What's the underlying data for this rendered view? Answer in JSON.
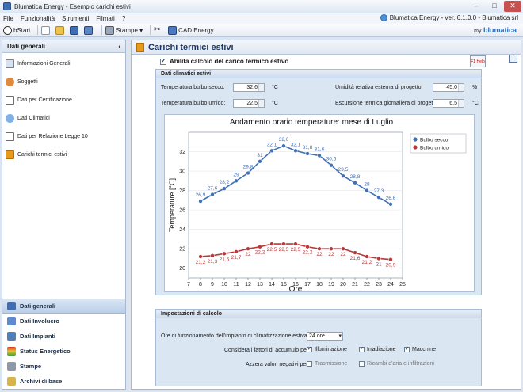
{
  "window": {
    "title": "Blumatica Energy - Esempio carichi estivi",
    "version": "Blumatica Energy - ver. 6.1.0.0 - Blumatica srl"
  },
  "menu": [
    "File",
    "Funzionalità",
    "Strumenti",
    "Filmati",
    "?"
  ],
  "toolbar": {
    "bstart": "bStart",
    "stampe": "Stampe",
    "cad": "CAD Energy",
    "brand_prefix": "my",
    "brand": "blumatica"
  },
  "sidebar": {
    "title": "Dati generali",
    "items": [
      "Informazioni Generali",
      "Soggetti",
      "Dati per Certificazione",
      "Dati Climatici",
      "Dati per Relazione Legge 10",
      "Carichi termici estivi"
    ],
    "bottom": [
      "Dati generali",
      "Dati Involucro",
      "Dati Impianti",
      "Status Energetico",
      "Stampe",
      "Archivi di base"
    ]
  },
  "main": {
    "title": "Carichi termici estivi",
    "enable_label": "Abilita calcolo del carico termico estivo",
    "help": "F1 Help"
  },
  "clim": {
    "title": "Dati climatici estivi",
    "f1_label": "Temperatura bulbo secco:",
    "f1_value": "32,6",
    "f1_unit": "°C",
    "f2_label": "Temperatura bulbo umido:",
    "f2_value": "22,5",
    "f2_unit": "°C",
    "f3_label": "Umidità relativa esterna di progetto:",
    "f3_value": "45,0",
    "f3_unit": "%",
    "f4_label": "Escursione termica giornaliera di progetto:",
    "f4_value": "6,5",
    "f4_unit": "°C"
  },
  "chart_data": {
    "type": "line",
    "title": "Andamento orario temperature: mese di Luglio",
    "xlabel": "Ore",
    "ylabel": "Temperature [°C]",
    "x": [
      8,
      9,
      10,
      11,
      12,
      13,
      14,
      15,
      16,
      17,
      18,
      19,
      20,
      21,
      22,
      23,
      24
    ],
    "xlim": [
      7,
      25
    ],
    "ylim": [
      19,
      34
    ],
    "xticks": [
      7,
      8,
      9,
      10,
      11,
      12,
      13,
      14,
      15,
      16,
      17,
      18,
      19,
      20,
      21,
      22,
      23,
      24,
      25
    ],
    "yticks": [
      20,
      22,
      24,
      26,
      28,
      30,
      32
    ],
    "legend": "top-right",
    "series": [
      {
        "name": "Bulbo secco",
        "color": "#3f6fb4",
        "values": [
          26.9,
          27.6,
          28.2,
          29,
          29.8,
          31,
          32.1,
          32.6,
          32.1,
          31.8,
          31.6,
          30.6,
          29.5,
          28.8,
          28,
          27.3,
          26.6
        ],
        "labels": [
          "26,9",
          "27,6",
          "28,2",
          "29",
          "29,8",
          "31",
          "32,1",
          "32,6",
          "32,1",
          "31,8",
          "31,6",
          "30,6",
          "29,5",
          "28,8",
          "28",
          "27,3",
          "26,6"
        ]
      },
      {
        "name": "Bulbo umido",
        "color": "#b9383a",
        "values": [
          21.2,
          21.3,
          21.5,
          21.7,
          22,
          22.2,
          22.5,
          22.5,
          22.5,
          22.2,
          22,
          22,
          22,
          21.6,
          21.2,
          21,
          20.9
        ],
        "labels": [
          "21,2",
          "21,3",
          "21,5",
          "21,7",
          "22",
          "22,2",
          "22,5",
          "22,5",
          "22,5",
          "22,2",
          "22",
          "22",
          "22",
          "21,6",
          "21,2",
          "21",
          "20,9"
        ]
      }
    ]
  },
  "calc": {
    "title": "Impostazioni di calcolo",
    "hours_label": "Ore di funzionamento dell'impianto di climatizzazione estiva:",
    "hours_value": "24 ore",
    "accumulo_label": "Considera i fattori di accumulo per:",
    "opt1": "Illuminazione",
    "opt2": "Irradiazione",
    "opt3": "Macchine",
    "azzera_label": "Azzera valori negativi per:",
    "opt4": "Trasmissione",
    "opt5": "Ricambi d'aria e infiltrazioni"
  }
}
